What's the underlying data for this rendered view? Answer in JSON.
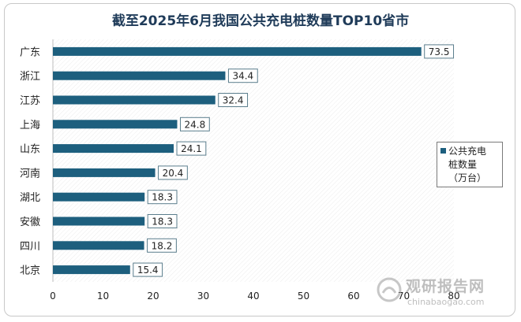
{
  "chart_data": {
    "type": "bar",
    "orientation": "horizontal",
    "title": "截至2025年6月我国公共充电桩数量TOP10省市",
    "categories": [
      "广东",
      "浙江",
      "江苏",
      "上海",
      "山东",
      "河南",
      "湖北",
      "安徽",
      "四川",
      "北京"
    ],
    "series": [
      {
        "name": "公共充电桩数量（万台）",
        "values": [
          73.5,
          34.4,
          32.4,
          24.8,
          24.1,
          20.4,
          18.3,
          18.3,
          18.2,
          15.4
        ],
        "labels": [
          "73.5",
          "34.4",
          "32.4",
          "24.8",
          "24.1",
          "20.4",
          "18.3",
          "18.3",
          "18.2",
          "15.4"
        ]
      }
    ],
    "xlim": [
      0,
      80
    ],
    "xticks": [
      "0",
      "10",
      "20",
      "30",
      "40",
      "50",
      "60",
      "70",
      "80"
    ],
    "xlabel": "",
    "ylabel": "",
    "grid": false,
    "legend_position": "right"
  },
  "legend": {
    "line1": "公共充电",
    "line2": "桩数量",
    "line3": "（万台）"
  },
  "watermark": {
    "title": "观研报告网",
    "url": "chinabaogao.com"
  },
  "colors": {
    "bar": "#1d5f7e",
    "title": "#1f3b59"
  }
}
